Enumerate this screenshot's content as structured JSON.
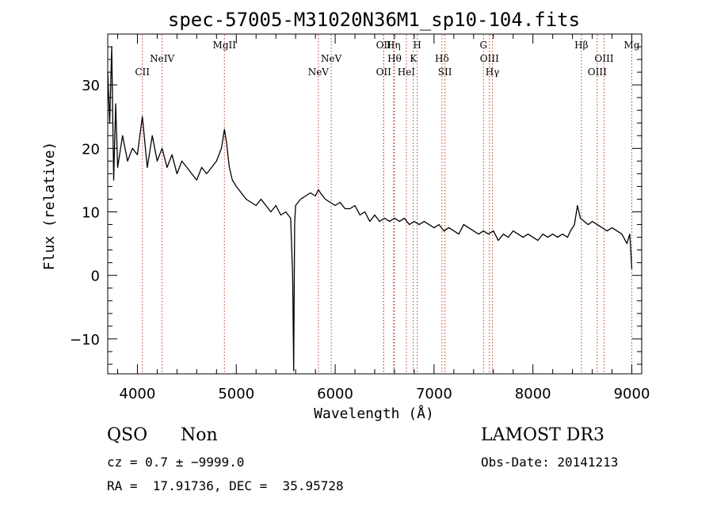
{
  "chart_data": {
    "type": "line",
    "title": "spec-57005-M31020N36M1_sp10-104.fits",
    "xlabel": "Wavelength (Å)",
    "ylabel": "Flux (relative)",
    "xlim": [
      3700,
      9100
    ],
    "ylim": [
      -15.5,
      38
    ],
    "xticks": [
      4000,
      5000,
      6000,
      7000,
      8000,
      9000
    ],
    "xtick_labels": [
      "4000",
      "5000",
      "6000",
      "7000",
      "8000",
      "9000"
    ],
    "yticks": [
      -10,
      0,
      10,
      20,
      30
    ],
    "ytick_labels": [
      "−10",
      "0",
      "10",
      "20",
      "30"
    ],
    "grid": false,
    "series": [
      {
        "name": "flux",
        "x": [
          3700,
          3720,
          3740,
          3760,
          3780,
          3800,
          3850,
          3900,
          3950,
          4000,
          4050,
          4100,
          4150,
          4200,
          4250,
          4300,
          4350,
          4400,
          4450,
          4500,
          4550,
          4600,
          4650,
          4700,
          4750,
          4800,
          4850,
          4880,
          4900,
          4930,
          4960,
          5000,
          5050,
          5100,
          5150,
          5200,
          5250,
          5300,
          5350,
          5400,
          5450,
          5500,
          5550,
          5570,
          5580,
          5590,
          5600,
          5650,
          5700,
          5750,
          5800,
          5830,
          5850,
          5900,
          5950,
          6000,
          6050,
          6100,
          6150,
          6200,
          6250,
          6300,
          6350,
          6400,
          6450,
          6500,
          6550,
          6600,
          6650,
          6700,
          6750,
          6800,
          6850,
          6900,
          6950,
          7000,
          7050,
          7100,
          7150,
          7200,
          7250,
          7300,
          7350,
          7400,
          7450,
          7500,
          7550,
          7600,
          7650,
          7700,
          7750,
          7800,
          7850,
          7900,
          7950,
          8000,
          8050,
          8100,
          8150,
          8200,
          8250,
          8300,
          8350,
          8380,
          8420,
          8450,
          8480,
          8520,
          8560,
          8600,
          8650,
          8700,
          8750,
          8800,
          8850,
          8900,
          8950,
          8980,
          9000
        ],
        "y": [
          32,
          24,
          36,
          15,
          27,
          17,
          22,
          18,
          20,
          19,
          25,
          17,
          22,
          18,
          20,
          17,
          19,
          16,
          18,
          17,
          16,
          15,
          17,
          16,
          17,
          18,
          20,
          23,
          21,
          17,
          15,
          14,
          13,
          12,
          11.5,
          11,
          12,
          11,
          10,
          11,
          9.5,
          10,
          9,
          0,
          -15,
          8,
          11,
          12,
          12.5,
          13,
          12.5,
          13.5,
          13,
          12,
          11.5,
          11,
          11.5,
          10.5,
          10.5,
          11,
          9.5,
          10,
          8.5,
          9.5,
          8.5,
          9,
          8.5,
          9,
          8.5,
          9,
          8,
          8.5,
          8,
          8.5,
          8,
          7.5,
          8,
          7,
          7.5,
          7,
          6.5,
          8,
          7.5,
          7,
          6.5,
          7,
          6.5,
          7,
          5.5,
          6.5,
          6,
          7,
          6.5,
          6,
          6.5,
          6,
          5.5,
          6.5,
          6,
          6.5,
          6,
          6.5,
          6,
          7,
          8,
          11,
          9,
          8.5,
          8,
          8.5,
          8,
          7.5,
          7,
          7.5,
          7,
          6.5,
          5,
          6.5,
          1
        ]
      }
    ],
    "spectral_lines": [
      {
        "name": "CII",
        "x": 4050,
        "row": 2
      },
      {
        "name": "NeIV",
        "x": 4250,
        "row": 1
      },
      {
        "name": "MgII",
        "x": 4880,
        "row": 0
      },
      {
        "name": "NeV",
        "x": 5830,
        "row": 2
      },
      {
        "name": "NeV",
        "x": 5960,
        "row": 1
      },
      {
        "name": "OII",
        "x": 6490,
        "row": 0
      },
      {
        "name": "OII",
        "x": 6490,
        "row": 2
      },
      {
        "name": "Hη",
        "x": 6590,
        "row": 0
      },
      {
        "name": "Hθ",
        "x": 6600,
        "row": 1
      },
      {
        "name": "HeI",
        "x": 6720,
        "row": 2
      },
      {
        "name": "H",
        "x": 6830,
        "row": 0
      },
      {
        "name": "K",
        "x": 6790,
        "row": 1
      },
      {
        "name": "Hδ",
        "x": 7080,
        "row": 1
      },
      {
        "name": "SII",
        "x": 7110,
        "row": 2
      },
      {
        "name": "G",
        "x": 7500,
        "row": 0
      },
      {
        "name": "OIII",
        "x": 7560,
        "row": 1
      },
      {
        "name": "Hγ",
        "x": 7590,
        "row": 2
      },
      {
        "name": "Hβ",
        "x": 8490,
        "row": 0
      },
      {
        "name": "OIII",
        "x": 8650,
        "row": 2
      },
      {
        "name": "OIII",
        "x": 8720,
        "row": 1
      },
      {
        "name": "Mg",
        "x": 9000,
        "row": 0
      }
    ]
  },
  "info": {
    "class": "QSO",
    "subclass": "Non",
    "cz": "cz = 0.7 ± −9999.0",
    "coords": "RA =  17.91736, DEC =  35.95728",
    "survey": "LAMOST DR3",
    "obs_date": "Obs-Date: 20141213"
  }
}
